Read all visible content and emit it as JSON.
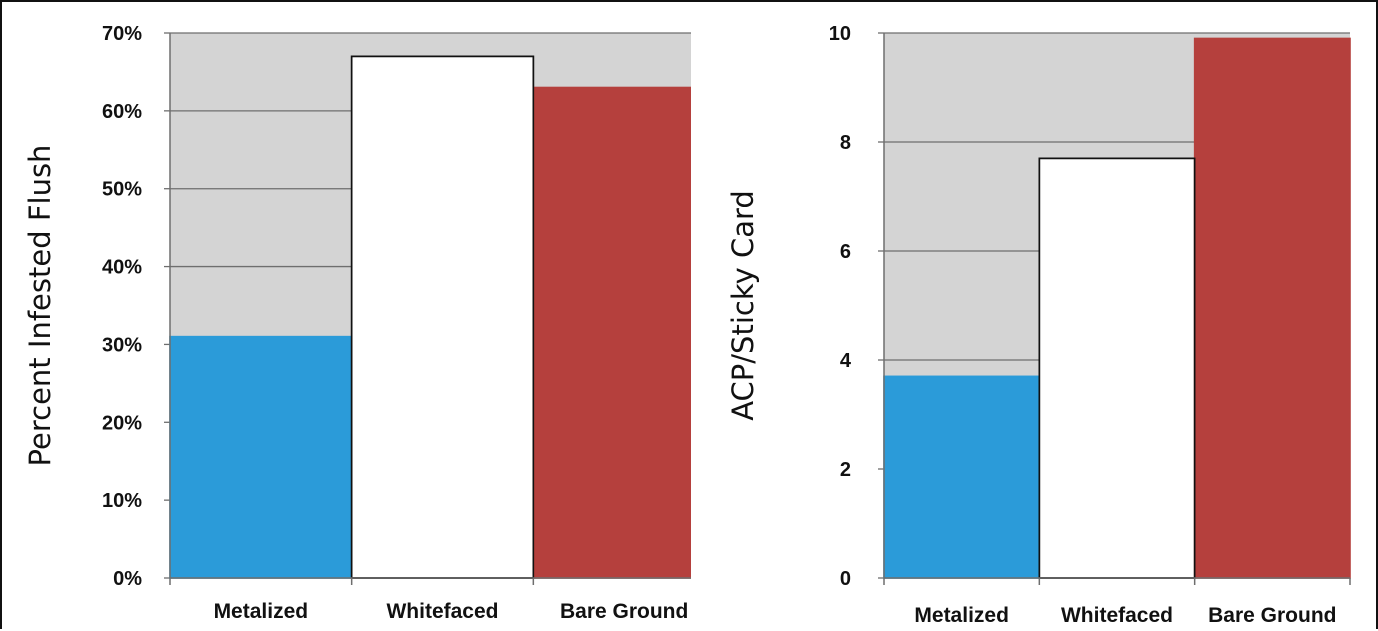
{
  "chart_data": [
    {
      "type": "bar",
      "categories": [
        "Metalized",
        "Whitefaced",
        "Bare Ground"
      ],
      "values": [
        0.31,
        0.67,
        0.63
      ],
      "colors": [
        "#2b9bd9",
        "#ffffff",
        "#b5403d"
      ],
      "ylabel": "Percent Infested Flush",
      "ylim": [
        0,
        0.7
      ],
      "yticks": [
        0,
        0.1,
        0.2,
        0.3,
        0.4,
        0.5,
        0.6,
        0.7
      ],
      "ytick_labels": [
        "0%",
        "10%",
        "20%",
        "30%",
        "40%",
        "50%",
        "60%",
        "70%"
      ],
      "grid": true,
      "plot_background": "#d4d4d4"
    },
    {
      "type": "bar",
      "categories": [
        "Metalized",
        "Whitefaced",
        "Bare Ground"
      ],
      "values": [
        3.7,
        7.7,
        9.9
      ],
      "colors": [
        "#2b9bd9",
        "#ffffff",
        "#b5403d"
      ],
      "ylabel": "ACP/Sticky Card",
      "ylim": [
        0,
        10
      ],
      "yticks": [
        0,
        2,
        4,
        6,
        8,
        10
      ],
      "ytick_labels": [
        "0",
        "2",
        "4",
        "6",
        "8",
        "10"
      ],
      "grid": true,
      "plot_background": "#d4d4d4"
    }
  ]
}
